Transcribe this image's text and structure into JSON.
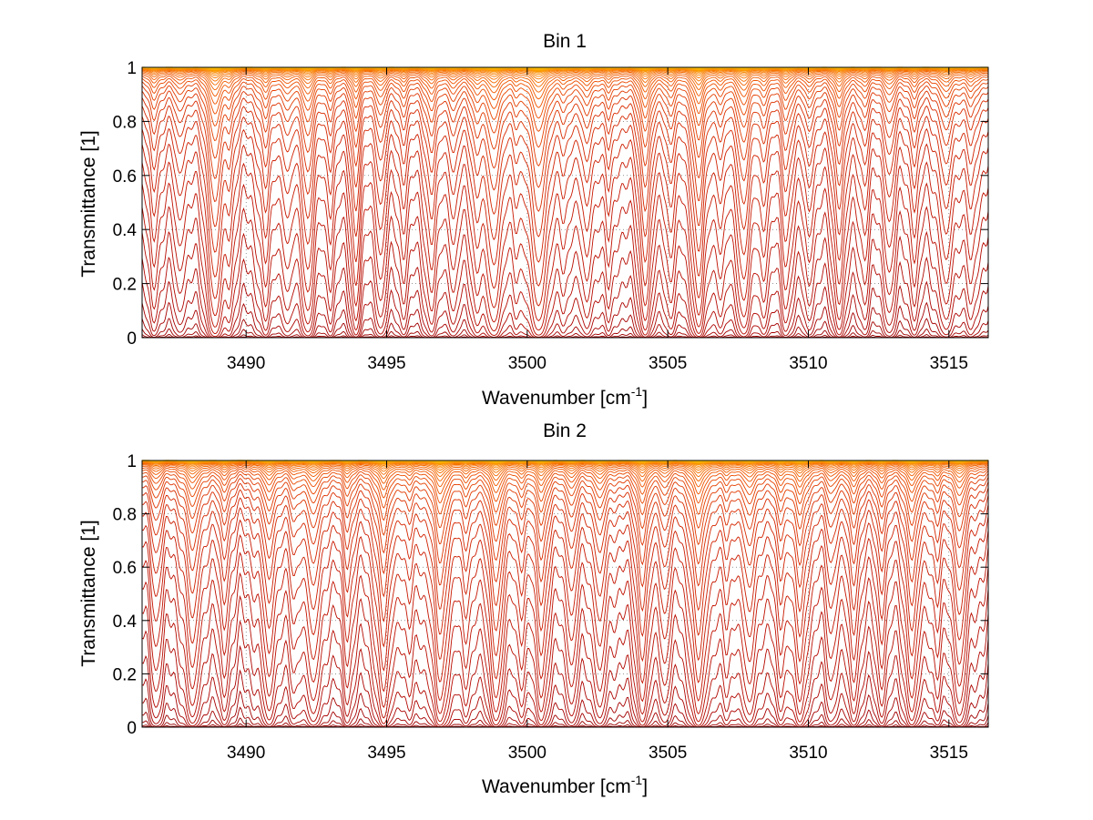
{
  "figure": {
    "background": "#ffffff",
    "palette": [
      "#8b0000",
      "#a50000",
      "#c01000",
      "#d82a00",
      "#ee5000",
      "#f77800",
      "#fba000",
      "#ffc400"
    ]
  },
  "chart_data": [
    {
      "type": "line",
      "title": "Bin 1",
      "xlabel": "Wavenumber [cm",
      "xlabel_sup": "-1",
      "xlabel_end": "]",
      "ylabel": "Transmittance [1]",
      "xlim": [
        3486.3,
        3516.4
      ],
      "ylim": [
        0,
        1
      ],
      "xticks": [
        3490,
        3495,
        3500,
        3505,
        3510,
        3515
      ],
      "xtick_labels": [
        "3490",
        "3495",
        "3500",
        "3505",
        "3510",
        "3515"
      ],
      "yticks": [
        0,
        0.2,
        0.4,
        0.6,
        0.8,
        1
      ],
      "ytick_labels": [
        "0",
        "0.2",
        "0.4",
        "0.6",
        "0.8",
        "1"
      ],
      "grid": "dotted",
      "series_count": 40,
      "absorption_lines": [
        {
          "x": 3486.7,
          "strength": 1.2,
          "width": 0.18
        },
        {
          "x": 3487.6,
          "strength": 0.8,
          "width": 0.16
        },
        {
          "x": 3488.9,
          "strength": 4.0,
          "width": 0.22
        },
        {
          "x": 3489.4,
          "strength": 1.0,
          "width": 0.15
        },
        {
          "x": 3490.7,
          "strength": 1.6,
          "width": 0.18
        },
        {
          "x": 3491.5,
          "strength": 1.1,
          "width": 0.17
        },
        {
          "x": 3492.2,
          "strength": 2.5,
          "width": 0.2
        },
        {
          "x": 3493.0,
          "strength": 0.9,
          "width": 0.15
        },
        {
          "x": 3493.9,
          "strength": 2.2,
          "width": 0.15
        },
        {
          "x": 3494.8,
          "strength": 1.4,
          "width": 0.17
        },
        {
          "x": 3495.6,
          "strength": 0.8,
          "width": 0.16
        },
        {
          "x": 3496.6,
          "strength": 1.7,
          "width": 0.2
        },
        {
          "x": 3497.4,
          "strength": 1.0,
          "width": 0.16
        },
        {
          "x": 3498.2,
          "strength": 1.3,
          "width": 0.18
        },
        {
          "x": 3498.8,
          "strength": 3.2,
          "width": 0.24
        },
        {
          "x": 3499.6,
          "strength": 0.9,
          "width": 0.16
        },
        {
          "x": 3500.4,
          "strength": 4.5,
          "width": 0.26
        },
        {
          "x": 3501.3,
          "strength": 1.0,
          "width": 0.17
        },
        {
          "x": 3502.1,
          "strength": 1.5,
          "width": 0.18
        },
        {
          "x": 3502.9,
          "strength": 1.1,
          "width": 0.16
        },
        {
          "x": 3504.2,
          "strength": 3.0,
          "width": 0.2
        },
        {
          "x": 3505.1,
          "strength": 1.2,
          "width": 0.17
        },
        {
          "x": 3506.1,
          "strength": 3.8,
          "width": 0.2
        },
        {
          "x": 3506.9,
          "strength": 1.0,
          "width": 0.16
        },
        {
          "x": 3507.7,
          "strength": 2.8,
          "width": 0.22
        },
        {
          "x": 3508.4,
          "strength": 1.1,
          "width": 0.16
        },
        {
          "x": 3509.2,
          "strength": 1.6,
          "width": 0.18
        },
        {
          "x": 3510.0,
          "strength": 1.0,
          "width": 0.16
        },
        {
          "x": 3511.1,
          "strength": 2.1,
          "width": 0.2
        },
        {
          "x": 3512.0,
          "strength": 0.9,
          "width": 0.16
        },
        {
          "x": 3512.9,
          "strength": 1.3,
          "width": 0.18
        },
        {
          "x": 3513.8,
          "strength": 1.0,
          "width": 0.16
        },
        {
          "x": 3514.9,
          "strength": 1.8,
          "width": 0.2
        },
        {
          "x": 3515.8,
          "strength": 1.2,
          "width": 0.18
        }
      ]
    },
    {
      "type": "line",
      "title": "Bin 2",
      "xlabel": "Wavenumber [cm",
      "xlabel_sup": "-1",
      "xlabel_end": "]",
      "ylabel": "Transmittance [1]",
      "xlim": [
        3486.3,
        3516.4
      ],
      "ylim": [
        0,
        1
      ],
      "xticks": [
        3490,
        3495,
        3500,
        3505,
        3510,
        3515
      ],
      "xtick_labels": [
        "3490",
        "3495",
        "3500",
        "3505",
        "3510",
        "3515"
      ],
      "yticks": [
        0,
        0.2,
        0.4,
        0.6,
        0.8,
        1
      ],
      "ytick_labels": [
        "0",
        "0.2",
        "0.4",
        "0.6",
        "0.8",
        "1"
      ],
      "grid": "dotted",
      "series_count": 40,
      "absorption_lines": [
        {
          "x": 3486.8,
          "strength": 1.0,
          "width": 0.17
        },
        {
          "x": 3488.1,
          "strength": 2.3,
          "width": 0.2
        },
        {
          "x": 3489.2,
          "strength": 1.1,
          "width": 0.16
        },
        {
          "x": 3490.8,
          "strength": 1.8,
          "width": 0.18
        },
        {
          "x": 3491.7,
          "strength": 1.0,
          "width": 0.16
        },
        {
          "x": 3492.4,
          "strength": 2.0,
          "width": 0.2
        },
        {
          "x": 3493.6,
          "strength": 1.2,
          "width": 0.17
        },
        {
          "x": 3494.9,
          "strength": 3.0,
          "width": 0.2
        },
        {
          "x": 3495.8,
          "strength": 1.0,
          "width": 0.16
        },
        {
          "x": 3496.9,
          "strength": 3.5,
          "width": 0.22
        },
        {
          "x": 3497.8,
          "strength": 1.1,
          "width": 0.17
        },
        {
          "x": 3498.9,
          "strength": 3.2,
          "width": 0.22
        },
        {
          "x": 3499.8,
          "strength": 1.0,
          "width": 0.16
        },
        {
          "x": 3500.5,
          "strength": 2.2,
          "width": 0.2
        },
        {
          "x": 3501.6,
          "strength": 1.3,
          "width": 0.17
        },
        {
          "x": 3502.6,
          "strength": 1.6,
          "width": 0.18
        },
        {
          "x": 3504.1,
          "strength": 2.4,
          "width": 0.2
        },
        {
          "x": 3504.9,
          "strength": 1.1,
          "width": 0.16
        },
        {
          "x": 3506.1,
          "strength": 3.6,
          "width": 0.22
        },
        {
          "x": 3507.1,
          "strength": 1.0,
          "width": 0.16
        },
        {
          "x": 3507.9,
          "strength": 2.0,
          "width": 0.2
        },
        {
          "x": 3509.0,
          "strength": 1.4,
          "width": 0.18
        },
        {
          "x": 3509.7,
          "strength": 2.6,
          "width": 0.2
        },
        {
          "x": 3510.8,
          "strength": 1.1,
          "width": 0.17
        },
        {
          "x": 3511.6,
          "strength": 1.7,
          "width": 0.18
        },
        {
          "x": 3512.6,
          "strength": 1.2,
          "width": 0.17
        },
        {
          "x": 3513.7,
          "strength": 2.4,
          "width": 0.2
        },
        {
          "x": 3514.6,
          "strength": 1.0,
          "width": 0.16
        },
        {
          "x": 3515.4,
          "strength": 2.0,
          "width": 0.2
        }
      ]
    }
  ]
}
